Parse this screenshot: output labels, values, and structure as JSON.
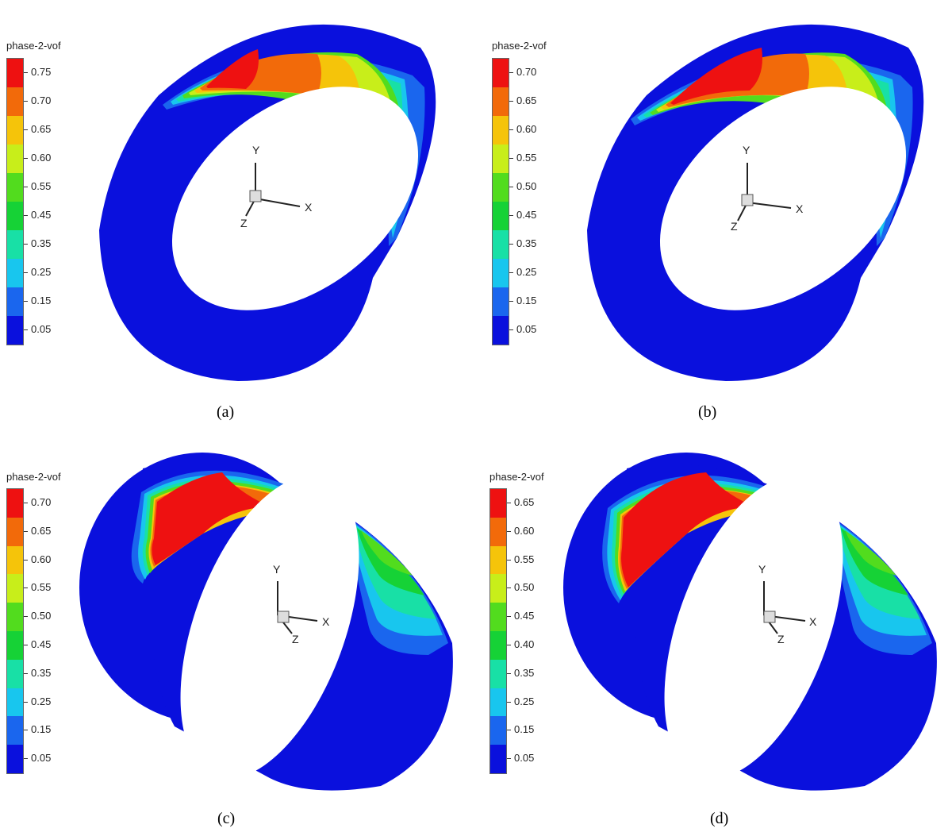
{
  "panels": [
    {
      "caption": "(a)",
      "colorbar_title": "phase-2-vof",
      "colorbar_ticks": [
        "0.75",
        "0.70",
        "0.65",
        "0.60",
        "0.55",
        "0.45",
        "0.35",
        "0.25",
        "0.15",
        "0.05"
      ],
      "axes": {
        "x": "X",
        "y": "Y",
        "z": "Z"
      }
    },
    {
      "caption": "(b)",
      "colorbar_title": "phase-2-vof",
      "colorbar_ticks": [
        "0.70",
        "0.65",
        "0.60",
        "0.55",
        "0.50",
        "0.45",
        "0.35",
        "0.25",
        "0.15",
        "0.05"
      ],
      "axes": {
        "x": "X",
        "y": "Y",
        "z": "Z"
      }
    },
    {
      "caption": "(c)",
      "colorbar_title": "phase-2-vof",
      "colorbar_ticks": [
        "0.70",
        "0.65",
        "0.60",
        "0.55",
        "0.50",
        "0.45",
        "0.35",
        "0.25",
        "0.15",
        "0.05"
      ],
      "axes": {
        "x": "X",
        "y": "Y",
        "z": "Z"
      }
    },
    {
      "caption": "(d)",
      "colorbar_title": "phase-2-vof",
      "colorbar_ticks": [
        "0.65",
        "0.60",
        "0.55",
        "0.50",
        "0.45",
        "0.40",
        "0.35",
        "0.25",
        "0.15",
        "0.05"
      ],
      "axes": {
        "x": "X",
        "y": "Y",
        "z": "Z"
      }
    }
  ],
  "colors": {
    "colorbar": [
      "#ee1111",
      "#f26a0a",
      "#f5c40a",
      "#c8ee1a",
      "#52dc1e",
      "#16d236",
      "#18e0a6",
      "#18c6ee",
      "#1a66ee",
      "#0a10dd"
    ],
    "cylinder_base": "#0a10dd"
  }
}
